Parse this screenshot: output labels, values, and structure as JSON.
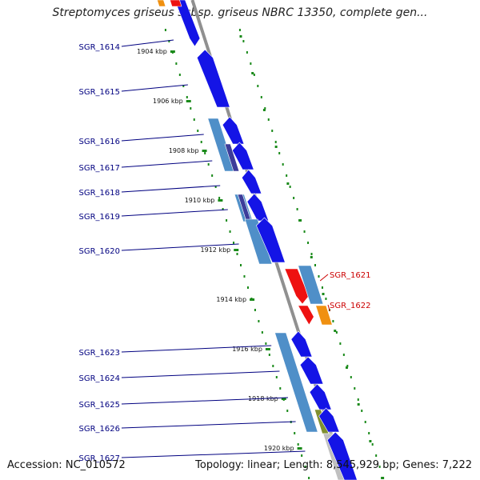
{
  "title": "Streptomyces griseus subsp. griseus NBRC 13350, complete gen...",
  "footer": {
    "accession_label": "Accession:",
    "accession": "NC_010572",
    "topology_label": "Topology:",
    "topology": "linear",
    "length_label": "Length:",
    "length": "8,545,929 bp",
    "genes_label": "Genes:",
    "genes": "7,222"
  },
  "colors": {
    "backbone": "#909090",
    "gene_blue": "#1414e6",
    "gene_steel": "#4f8fc8",
    "gene_navy": "#3c3c9a",
    "gene_olive": "#809030",
    "gene_red": "#ee1111",
    "gene_orange": "#f09010",
    "gene_gray": "#c0c0c0",
    "scale_tick": "#1a8a1a",
    "label_left": "#000080",
    "label_right": "#cc0000"
  },
  "kbp_ticks": [
    {
      "label": "1904 kbp",
      "kbp": 1904
    },
    {
      "label": "1906 kbp",
      "kbp": 1906
    },
    {
      "label": "1908 kbp",
      "kbp": 1908
    },
    {
      "label": "1910 kbp",
      "kbp": 1910
    },
    {
      "label": "1912 kbp",
      "kbp": 1912
    },
    {
      "label": "1914 kbp",
      "kbp": 1914
    },
    {
      "label": "1916 kbp",
      "kbp": 1916
    },
    {
      "label": "1918 kbp",
      "kbp": 1918
    },
    {
      "label": "1920 kbp",
      "kbp": 1920
    }
  ],
  "genes_left": [
    {
      "name": "SGR_1614"
    },
    {
      "name": "SGR_1615"
    },
    {
      "name": "SGR_1616"
    },
    {
      "name": "SGR_1617"
    },
    {
      "name": "SGR_1618"
    },
    {
      "name": "SGR_1619"
    },
    {
      "name": "SGR_1620"
    },
    {
      "name": "SGR_1623"
    },
    {
      "name": "SGR_1624"
    },
    {
      "name": "SGR_1625"
    },
    {
      "name": "SGR_1626"
    },
    {
      "name": "SGR_1627"
    }
  ],
  "genes_right": [
    {
      "name": "SGR_1621"
    },
    {
      "name": "SGR_1622"
    }
  ]
}
